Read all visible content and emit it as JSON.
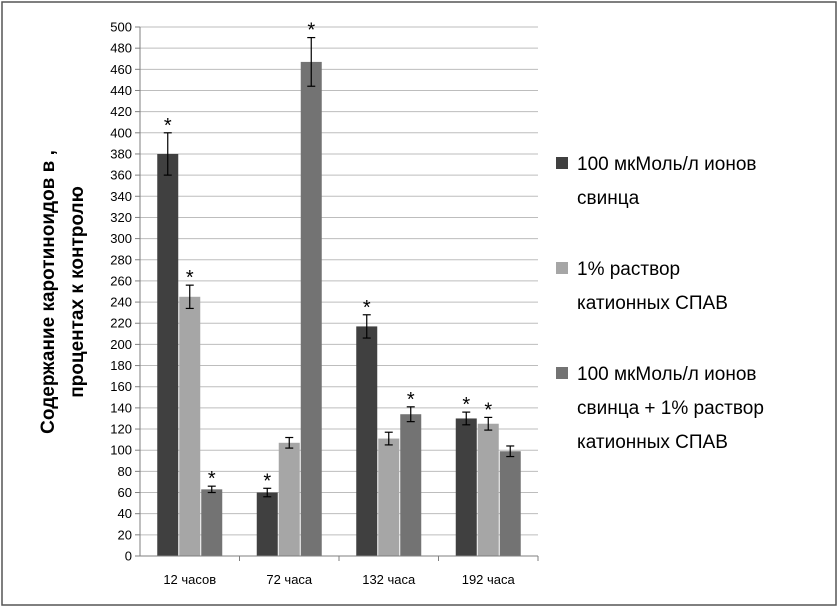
{
  "chart_data": {
    "type": "bar",
    "title": "",
    "xlabel": "",
    "ylabel_lines": [
      "Содержание каротиноидов в ,",
      "процентах к контролю"
    ],
    "ylim": [
      0,
      500
    ],
    "ytick_step": 20,
    "yticks": [
      "0",
      "20",
      "40",
      "60",
      "80",
      "100",
      "120",
      "140",
      "160",
      "180",
      "200",
      "220",
      "240",
      "260",
      "280",
      "300",
      "320",
      "340",
      "360",
      "380",
      "400",
      "420",
      "440",
      "460",
      "480",
      "500"
    ],
    "categories": [
      "12 часов",
      "72 часа",
      "132 часа",
      "192 часа"
    ],
    "grid": true,
    "legend_position": "right",
    "series": [
      {
        "name_lines": [
          "100 мкМоль/л ионов",
          "свинца"
        ],
        "color": "#404040",
        "values": [
          380,
          60,
          217,
          130
        ],
        "errors": [
          20,
          4,
          11,
          6
        ],
        "significance": [
          "*",
          "*",
          "*",
          "*"
        ]
      },
      {
        "name_lines": [
          "1% раствор",
          "катионных СПАВ"
        ],
        "color": "#a6a6a6",
        "values": [
          245,
          107,
          111,
          125
        ],
        "errors": [
          11,
          5,
          6,
          6
        ],
        "significance": [
          "*",
          "",
          "",
          "*"
        ]
      },
      {
        "name_lines": [
          "100 мкМоль/л ионов",
          "свинца + 1% раствор",
          "катионных СПАВ"
        ],
        "color": "#737373",
        "values": [
          63,
          467,
          134,
          99
        ],
        "errors": [
          3,
          23,
          7,
          5
        ],
        "significance": [
          "*",
          "*",
          "*",
          ""
        ]
      }
    ]
  }
}
